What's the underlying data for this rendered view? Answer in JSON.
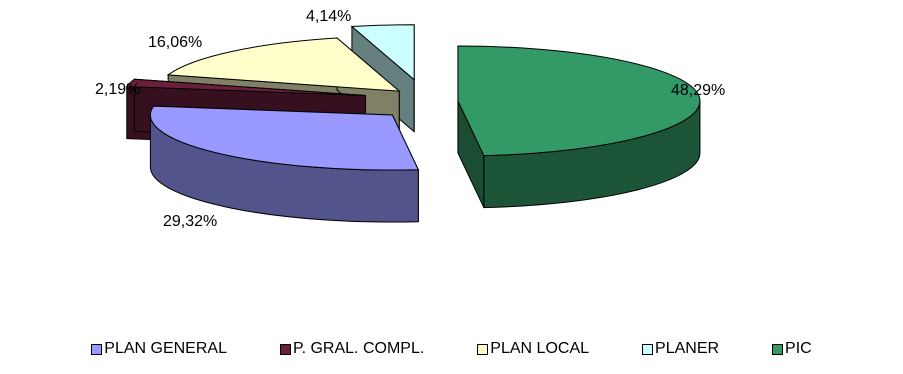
{
  "chart_data": {
    "type": "pie",
    "title": "",
    "categories": [
      "PLAN GENERAL",
      "P. GRAL. COMPL.",
      "PLAN LOCAL",
      "PLANER",
      "PIC"
    ],
    "values": [
      29.32,
      2.19,
      16.06,
      4.14,
      48.29
    ],
    "labels": [
      "29,32%",
      "2,19%",
      "16,06%",
      "4,14%",
      "48,29%"
    ],
    "colors": [
      "#9999ff",
      "#6b1f3d",
      "#ffffcc",
      "#ccffff",
      "#339966"
    ],
    "legend_position": "bottom",
    "style": "3d-exploded"
  }
}
